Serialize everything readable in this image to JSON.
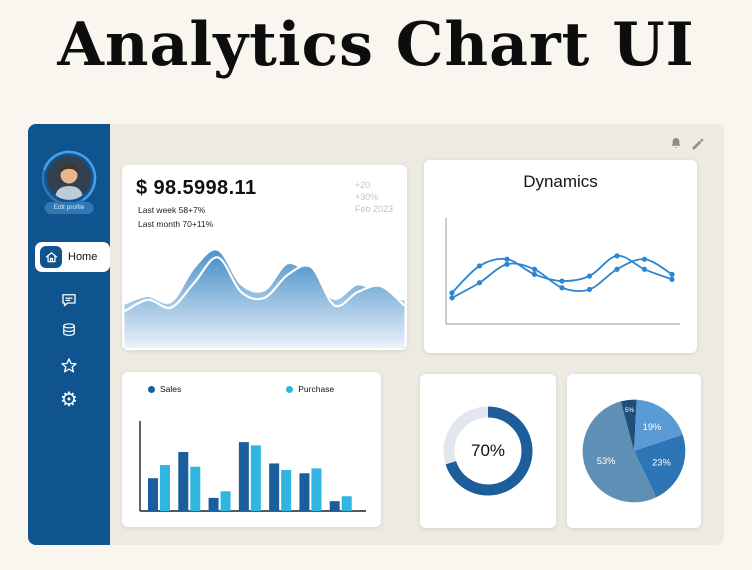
{
  "page": {
    "title": "Analytics Chart UI",
    "bg": "#F8F6EE",
    "panel_bg": "#ECEAE1"
  },
  "sidebar": {
    "bg": "#0F538F",
    "edit_profile_label": "Edit profile",
    "items": [
      {
        "label": "Home",
        "icon": "home-icon",
        "active": true
      },
      {
        "icon": "chat-icon"
      },
      {
        "icon": "coins-icon"
      },
      {
        "icon": "star-icon"
      },
      {
        "icon": "gear-icon"
      }
    ]
  },
  "header": {
    "icons": [
      "bell-icon",
      "pencil-icon"
    ]
  },
  "stats_card": {
    "amount": "$ 98.5998.11",
    "line1": "Last week 58+7%",
    "line2": "Last month 70+11%",
    "side_notes": [
      "+20",
      "+30%",
      "Feb 2023"
    ]
  },
  "chart_data": [
    {
      "id": "revenue-area",
      "type": "area",
      "gradient_top": "#4E93C9",
      "gradient_bottom": "#EAF2FA",
      "outline_color": "#FFFFFF",
      "series": [
        {
          "name": "wave-back",
          "values": [
            40,
            48,
            42,
            78,
            96,
            60,
            54,
            82,
            68,
            45,
            60,
            50,
            44
          ]
        },
        {
          "name": "wave-front",
          "values": [
            32,
            44,
            36,
            62,
            88,
            52,
            46,
            70,
            78,
            38,
            52,
            58,
            38
          ]
        }
      ]
    },
    {
      "id": "dynamics",
      "type": "line",
      "title": "Dynamics",
      "color": "#2A86D1",
      "axis_color": "#9A9A9A",
      "series": [
        {
          "name": "series-1",
          "values": [
            30,
            62,
            70,
            52,
            44,
            50,
            74,
            58,
            46
          ]
        },
        {
          "name": "series-2",
          "values": [
            24,
            42,
            64,
            58,
            36,
            34,
            58,
            70,
            52
          ]
        }
      ]
    },
    {
      "id": "sales-purchase",
      "type": "bar",
      "axis_color": "#222222",
      "series": [
        {
          "name": "Sales",
          "color": "#1B5E9E",
          "values": [
            40,
            72,
            16,
            84,
            58,
            46,
            12
          ]
        },
        {
          "name": "Purchase",
          "color": "#2FB5E0",
          "values": [
            56,
            54,
            24,
            80,
            50,
            52,
            18
          ]
        }
      ]
    },
    {
      "id": "gauge",
      "type": "donut",
      "value": 70,
      "label": "70%",
      "color": "#1D5D9A",
      "track_color": "#E2E6ED"
    },
    {
      "id": "pie",
      "type": "pie",
      "start_angle": -105,
      "slices": [
        {
          "label": "5%",
          "value": 5,
          "color": "#1F4E79"
        },
        {
          "label": "19%",
          "value": 19,
          "color": "#5B9BD5"
        },
        {
          "label": "23%",
          "value": 23,
          "color": "#2E75B6"
        },
        {
          "label": "53%",
          "value": 53,
          "color": "#5E8FB5"
        }
      ]
    }
  ]
}
